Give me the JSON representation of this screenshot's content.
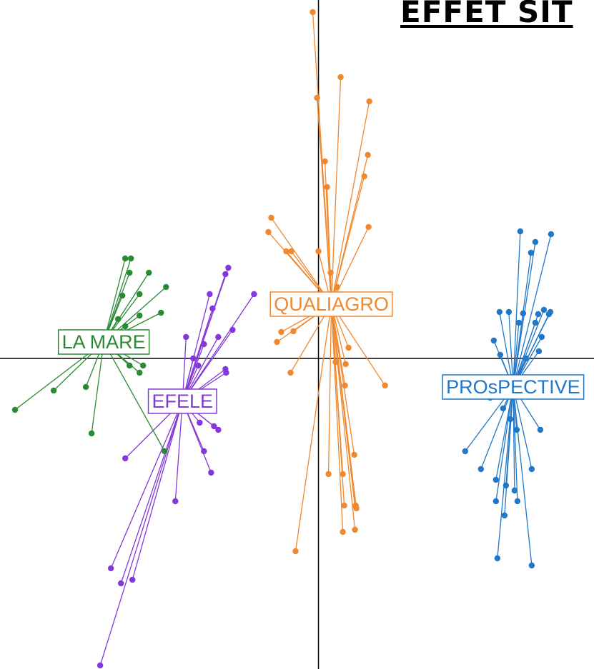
{
  "title": "EFFET SIT",
  "chart_data": {
    "type": "scatter",
    "title": "EFFET SIT",
    "xlim": [
      -4.45,
      3.85
    ],
    "ylim": [
      -4.35,
      5.02
    ],
    "axes_at_origin": true,
    "grid": false,
    "colors": {
      "QUALIAGRO": "#f0882f",
      "PROsPECTIVE": "#2177c8",
      "EFELE": "#8438d9",
      "LA MARE": "#2a8a34"
    },
    "series": [
      {
        "name": "QUALIAGRO",
        "centroid": [
          0.18,
          0.76
        ],
        "points": [
          [
            -0.08,
            4.85
          ],
          [
            -0.02,
            3.65
          ],
          [
            0.31,
            3.94
          ],
          [
            0.71,
            3.6
          ],
          [
            0.69,
            2.85
          ],
          [
            0.64,
            2.55
          ],
          [
            0.09,
            2.76
          ],
          [
            0.12,
            2.4
          ],
          [
            -0.66,
            1.97
          ],
          [
            -0.7,
            1.77
          ],
          [
            -0.38,
            1.5
          ],
          [
            0.7,
            1.84
          ],
          [
            -0.45,
            1.5
          ],
          [
            0.0,
            1.5
          ],
          [
            0.17,
            1.2
          ],
          [
            0.26,
            1.0
          ],
          [
            -0.52,
            0.37
          ],
          [
            -0.35,
            0.38
          ],
          [
            -0.58,
            0.23
          ],
          [
            0.42,
            0.15
          ],
          [
            0.24,
            -0.05
          ],
          [
            0.38,
            -0.08
          ],
          [
            0.37,
            -0.38
          ],
          [
            0.93,
            -0.38
          ],
          [
            -0.39,
            -0.2
          ],
          [
            0.5,
            -1.35
          ],
          [
            0.14,
            -1.62
          ],
          [
            0.34,
            -1.62
          ],
          [
            0.36,
            -2.06
          ],
          [
            0.51,
            -2.07
          ],
          [
            0.34,
            -2.43
          ],
          [
            0.51,
            -2.4
          ],
          [
            0.53,
            -2.1
          ],
          [
            0.52,
            -2.06
          ],
          [
            -0.32,
            -2.7
          ]
        ]
      },
      {
        "name": "PROsPECTIVE",
        "centroid": [
          2.72,
          -0.4
        ],
        "points": [
          [
            2.82,
            1.78
          ],
          [
            3.25,
            1.74
          ],
          [
            3.03,
            1.63
          ],
          [
            2.97,
            1.48
          ],
          [
            3.15,
            0.68
          ],
          [
            3.07,
            0.62
          ],
          [
            2.86,
            0.63
          ],
          [
            3.22,
            0.62
          ],
          [
            3.24,
            0.65
          ],
          [
            2.66,
            0.65
          ],
          [
            2.53,
            0.65
          ],
          [
            2.8,
            0.5
          ],
          [
            3.03,
            0.5
          ],
          [
            3.12,
            0.3
          ],
          [
            3.08,
            0.1
          ],
          [
            2.9,
            0.0
          ],
          [
            2.45,
            0.25
          ],
          [
            2.54,
            0.05
          ],
          [
            2.4,
            -0.55
          ],
          [
            2.58,
            -0.7
          ],
          [
            2.68,
            -0.85
          ],
          [
            2.77,
            -1.0
          ],
          [
            3.1,
            -1.0
          ],
          [
            2.05,
            -1.3
          ],
          [
            2.27,
            -1.55
          ],
          [
            2.48,
            -1.7
          ],
          [
            2.62,
            -1.78
          ],
          [
            2.74,
            -1.85
          ],
          [
            2.98,
            -1.55
          ],
          [
            2.48,
            -2.0
          ],
          [
            2.78,
            -2.0
          ],
          [
            2.6,
            -2.2
          ],
          [
            2.5,
            -2.8
          ],
          [
            2.98,
            -2.9
          ]
        ]
      },
      {
        "name": "EFELE",
        "centroid": [
          -1.9,
          -0.6
        ],
        "points": [
          [
            -1.26,
            1.27
          ],
          [
            -1.3,
            1.18
          ],
          [
            -1.52,
            0.9
          ],
          [
            -1.48,
            0.7
          ],
          [
            -0.9,
            0.9
          ],
          [
            -1.2,
            0.4
          ],
          [
            -1.4,
            0.3
          ],
          [
            -1.6,
            0.2
          ],
          [
            -1.85,
            0.3
          ],
          [
            -1.75,
            0.0
          ],
          [
            -1.68,
            -0.1
          ],
          [
            -1.3,
            -0.15
          ],
          [
            -1.29,
            -0.2
          ],
          [
            -1.66,
            -0.9
          ],
          [
            -1.46,
            -0.95
          ],
          [
            -1.4,
            -1.0
          ],
          [
            -1.6,
            -1.3
          ],
          [
            -2.7,
            -1.4
          ],
          [
            -1.5,
            -1.6
          ],
          [
            -2.0,
            -2.0
          ],
          [
            -2.9,
            -2.94
          ],
          [
            -2.76,
            -3.15
          ],
          [
            -2.6,
            -3.1
          ],
          [
            -3.05,
            -4.3
          ]
        ]
      },
      {
        "name": "LA MARE",
        "centroid": [
          -3.0,
          0.23
        ],
        "points": [
          [
            -2.7,
            1.4
          ],
          [
            -2.62,
            1.4
          ],
          [
            -2.37,
            1.2
          ],
          [
            -2.64,
            1.2
          ],
          [
            -2.13,
            1.0
          ],
          [
            -2.5,
            0.9
          ],
          [
            -2.74,
            0.88
          ],
          [
            -2.5,
            0.6
          ],
          [
            -2.2,
            0.64
          ],
          [
            -2.8,
            0.55
          ],
          [
            -2.7,
            0.45
          ],
          [
            -2.45,
            -0.1
          ],
          [
            -2.5,
            -0.2
          ],
          [
            -2.64,
            -0.1
          ],
          [
            -3.25,
            -0.4
          ],
          [
            -3.7,
            -0.45
          ],
          [
            -4.24,
            -0.72
          ],
          [
            -3.17,
            -1.05
          ],
          [
            -2.15,
            -1.3
          ]
        ]
      }
    ]
  }
}
